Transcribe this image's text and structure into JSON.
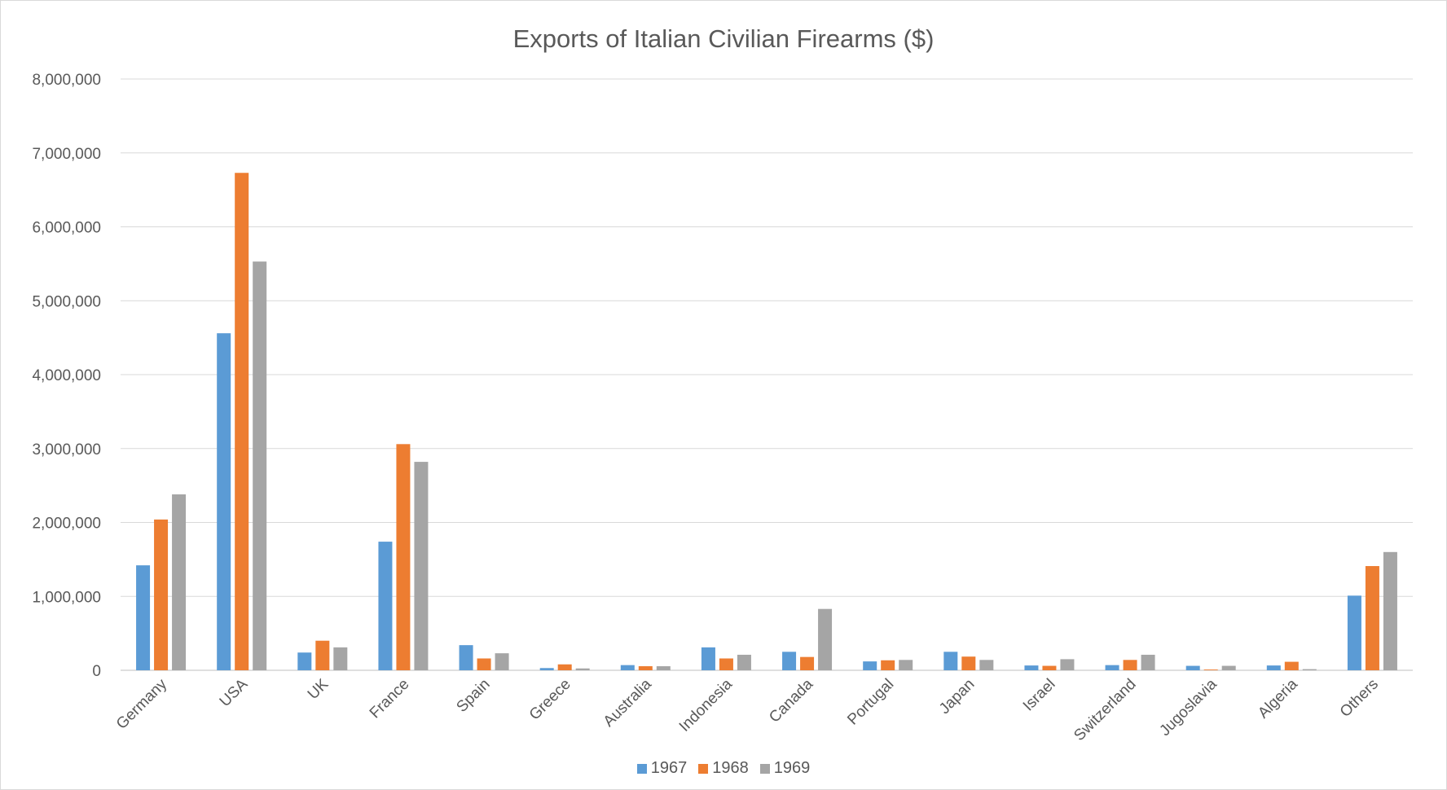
{
  "chart_data": {
    "type": "bar",
    "title": "Exports of Italian Civilian Firearms ($)",
    "xlabel": "",
    "ylabel": "",
    "ylim": [
      0,
      8000000
    ],
    "y_ticks": [
      "0",
      "1,000,000",
      "2,000,000",
      "3,000,000",
      "4,000,000",
      "5,000,000",
      "6,000,000",
      "7,000,000",
      "8,000,000"
    ],
    "y_tick_values": [
      0,
      1000000,
      2000000,
      3000000,
      4000000,
      5000000,
      6000000,
      7000000,
      8000000
    ],
    "grid": true,
    "legend_position": "bottom",
    "categories": [
      "Germany",
      "USA",
      "UK",
      "France",
      "Spain",
      "Greece",
      "Australia",
      "Indonesia",
      "Canada",
      "Portugal",
      "Japan",
      "Israel",
      "Switzerland",
      "Jugoslavia",
      "Algeria",
      "Others"
    ],
    "series": [
      {
        "name": "1967",
        "color": "#5b9bd5",
        "values": [
          1420000,
          4560000,
          240000,
          1740000,
          340000,
          30000,
          70000,
          310000,
          250000,
          120000,
          250000,
          65000,
          70000,
          60000,
          65000,
          1010000
        ]
      },
      {
        "name": "1968",
        "color": "#ed7d31",
        "values": [
          2040000,
          6730000,
          400000,
          3060000,
          160000,
          80000,
          55000,
          160000,
          180000,
          135000,
          185000,
          60000,
          140000,
          10000,
          115000,
          1410000
        ]
      },
      {
        "name": "1969",
        "color": "#a5a5a5",
        "values": [
          2380000,
          5530000,
          310000,
          2820000,
          230000,
          25000,
          55000,
          210000,
          830000,
          140000,
          140000,
          150000,
          210000,
          60000,
          15000,
          1600000
        ]
      }
    ]
  }
}
